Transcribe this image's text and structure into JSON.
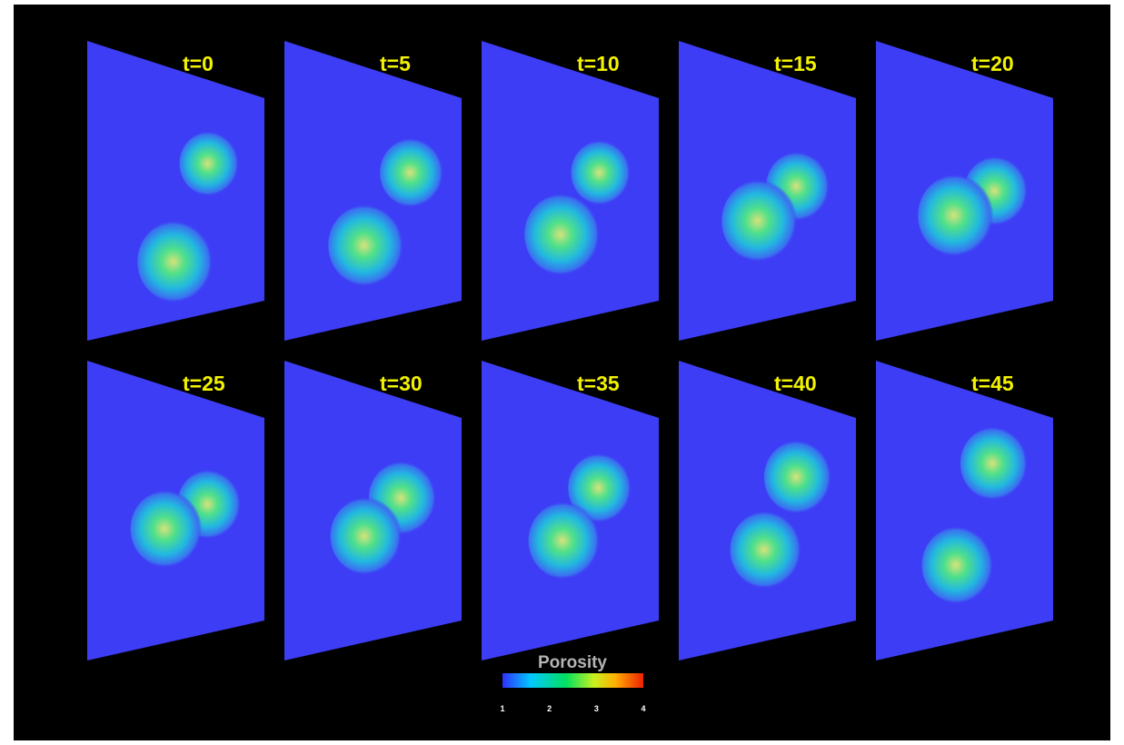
{
  "panels": [
    {
      "label": "t=0"
    },
    {
      "label": "t=5"
    },
    {
      "label": "t=10"
    },
    {
      "label": "t=15"
    },
    {
      "label": "t=20"
    },
    {
      "label": "t=25"
    },
    {
      "label": "t=30"
    },
    {
      "label": "t=35"
    },
    {
      "label": "t=40"
    },
    {
      "label": "t=45"
    }
  ],
  "colorbar": {
    "title": "Porosity",
    "ticks": [
      "1",
      "2",
      "3",
      "4"
    ]
  }
}
